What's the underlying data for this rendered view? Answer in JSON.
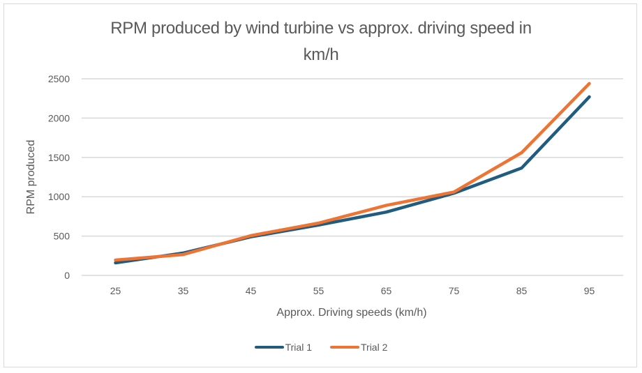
{
  "chart_data": {
    "type": "line",
    "title": "RPM produced by wind turbine vs approx. driving speed in km/h",
    "title_lines": [
      "RPM produced by wind turbine vs approx. driving speed in",
      "km/h"
    ],
    "xlabel": "Approx. Driving speeds (km/h)",
    "ylabel": "RPM produced",
    "categories": [
      "25",
      "35",
      "45",
      "55",
      "65",
      "75",
      "85",
      "95"
    ],
    "ylim": [
      0,
      2500
    ],
    "yticks": [
      "0",
      "500",
      "1000",
      "1500",
      "2000",
      "2500"
    ],
    "ytick_values": [
      0,
      500,
      1000,
      1500,
      2000,
      2500
    ],
    "grid": true,
    "legend_position": "bottom",
    "series": [
      {
        "name": "Trial 1",
        "color": "#1f5c80",
        "values": [
          160,
          285,
          490,
          640,
          805,
          1045,
          1365,
          2270
        ]
      },
      {
        "name": "Trial 2",
        "color": "#ed7432",
        "values": [
          195,
          265,
          505,
          665,
          890,
          1060,
          1560,
          2440
        ]
      }
    ]
  }
}
